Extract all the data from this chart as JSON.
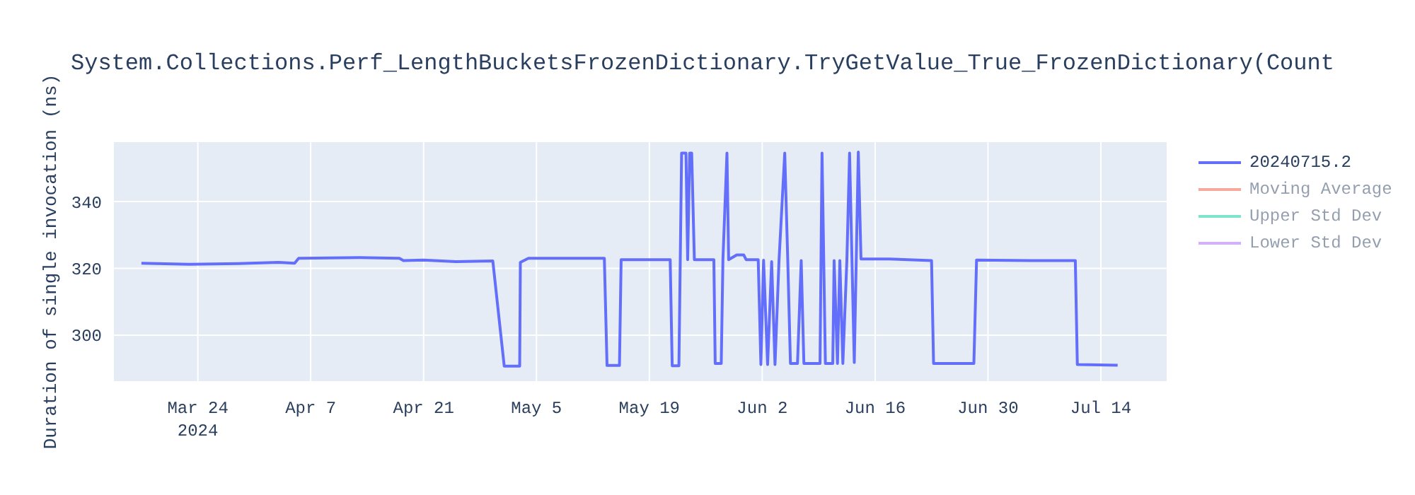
{
  "chart_data": {
    "type": "line",
    "title": "System.Collections.Perf_LengthBucketsFrozenDictionary.TryGetValue_True_FrozenDictionary(Count",
    "ylabel": "Duration of single invocation (ns)",
    "x": [
      "2024-03-17",
      "2024-03-23",
      "2024-03-29",
      "2024-04-03",
      "2024-04-05",
      "2024-04-05T12:00",
      "2024-04-13",
      "2024-04-18",
      "2024-04-18T12:00",
      "2024-04-21",
      "2024-04-25",
      "2024-04-29T14:00",
      "2024-05-01",
      "2024-05-02T22:00",
      "2024-05-03",
      "2024-05-04",
      "2024-05-13T10:00",
      "2024-05-13T18:00",
      "2024-05-15T07:00",
      "2024-05-15T12:00",
      "2024-05-21T14:00",
      "2024-05-21T20:00",
      "2024-05-22T16:00",
      "2024-05-22T20:00",
      "2024-05-23",
      "2024-05-23T13:00",
      "2024-05-23T18:00",
      "2024-05-24",
      "2024-05-24T06:00",
      "2024-05-24T14:00",
      "2024-05-27",
      "2024-05-27T04:00",
      "2024-05-27T22:00",
      "2024-05-28T03:00",
      "2024-05-28T15:00",
      "2024-05-28T20:00",
      "2024-05-29T20:00",
      "2024-05-30T17:00",
      "2024-05-31",
      "2024-06-01T12:00",
      "2024-06-01T20:00",
      "2024-06-02T04:00",
      "2024-06-02T16:00",
      "2024-06-03T04:00",
      "2024-06-03T14:00",
      "2024-06-04T02:00",
      "2024-06-04T19:00",
      "2024-06-05T04:00",
      "2024-06-05T12:00",
      "2024-06-06T09:00",
      "2024-06-06T20:00",
      "2024-06-07T04:00",
      "2024-06-09T04:00",
      "2024-06-09T10:00",
      "2024-06-09T20:00",
      "2024-06-10T18:00",
      "2024-06-10T22:00",
      "2024-06-11T08:00",
      "2024-06-11T15:00",
      "2024-06-12",
      "2024-06-12T12:00",
      "2024-06-12T20:00",
      "2024-06-13T10:00",
      "2024-06-13T22:00",
      "2024-06-14T06:00",
      "2024-06-17T18:00",
      "2024-06-23",
      "2024-06-23T06:00",
      "2024-06-28T06:00",
      "2024-06-28T14:00",
      "2024-07-05T06:00",
      "2024-07-10T20:00",
      "2024-07-11T02:00",
      "2024-07-16T02:00"
    ],
    "series": [
      {
        "name": "20240715.2",
        "color": "#636efa",
        "values": [
          321.5,
          321.2,
          321.4,
          321.8,
          321.5,
          323.0,
          323.2,
          323.0,
          322.3,
          322.5,
          322.0,
          322.2,
          290.7,
          290.7,
          321.8,
          323.0,
          323.0,
          290.9,
          290.9,
          322.6,
          322.6,
          290.8,
          290.8,
          322.6,
          354.5,
          354.5,
          322.6,
          354.5,
          354.5,
          322.6,
          322.6,
          291.5,
          291.5,
          322.6,
          354.5,
          322.6,
          324.0,
          324.0,
          322.6,
          322.6,
          291.2,
          322.4,
          291.2,
          322.0,
          291.2,
          322.4,
          354.5,
          322.4,
          291.5,
          291.5,
          322.3,
          291.5,
          291.5,
          354.5,
          291.5,
          291.5,
          322.3,
          291.5,
          322.3,
          291.5,
          322.6,
          354.5,
          291.8,
          354.8,
          322.8,
          322.8,
          322.3,
          291.5,
          291.5,
          322.5,
          322.3,
          322.3,
          291.2,
          291.0
        ]
      },
      {
        "name": "Moving Average",
        "color": "#ef553b",
        "values": [
          null,
          null,
          null,
          null,
          null,
          null,
          null,
          null,
          null,
          null,
          null,
          null,
          null,
          null,
          null,
          null,
          null,
          null,
          null,
          null,
          null,
          null,
          null,
          null,
          null,
          null,
          null,
          null,
          null,
          null,
          null,
          null,
          null,
          null,
          null,
          null,
          null,
          null,
          null,
          null,
          null,
          null,
          null,
          null,
          null,
          null,
          null,
          null,
          null,
          null,
          null,
          null,
          null,
          null,
          null,
          null,
          null,
          null,
          null,
          null,
          null,
          null,
          null,
          null,
          null,
          null,
          null,
          null,
          null,
          null,
          null,
          null,
          null,
          null
        ]
      },
      {
        "name": "Upper Std Dev",
        "color": "#00cc96",
        "values": [
          null,
          null,
          null,
          null,
          null,
          null,
          null,
          null,
          null,
          null,
          null,
          null,
          null,
          null,
          null,
          null,
          null,
          null,
          null,
          null,
          null,
          null,
          null,
          null,
          null,
          null,
          null,
          null,
          null,
          null,
          null,
          null,
          null,
          null,
          null,
          null,
          null,
          null,
          null,
          null,
          null,
          null,
          null,
          null,
          null,
          null,
          null,
          null,
          null,
          null,
          null,
          null,
          null,
          null,
          null,
          null,
          null,
          null,
          null,
          null,
          null,
          null,
          null,
          null,
          null,
          null,
          null,
          null,
          null,
          null,
          null,
          null,
          null,
          null
        ]
      },
      {
        "name": "Lower Std Dev",
        "color": "#ab63fa",
        "values": [
          null,
          null,
          null,
          null,
          null,
          null,
          null,
          null,
          null,
          null,
          null,
          null,
          null,
          null,
          null,
          null,
          null,
          null,
          null,
          null,
          null,
          null,
          null,
          null,
          null,
          null,
          null,
          null,
          null,
          null,
          null,
          null,
          null,
          null,
          null,
          null,
          null,
          null,
          null,
          null,
          null,
          null,
          null,
          null,
          null,
          null,
          null,
          null,
          null,
          null,
          null,
          null,
          null,
          null,
          null,
          null,
          null,
          null,
          null,
          null,
          null,
          null,
          null,
          null,
          null,
          null,
          null,
          null,
          null,
          null,
          null,
          null,
          null,
          null
        ]
      }
    ],
    "xlim": [
      "2024-03-13T12:00",
      "2024-07-22T06:00"
    ],
    "xticks": [
      {
        "value": "2024-03-24",
        "label": "Mar 24\n2024"
      },
      {
        "value": "2024-04-07",
        "label": "Apr 7"
      },
      {
        "value": "2024-04-21",
        "label": "Apr 21"
      },
      {
        "value": "2024-05-05",
        "label": "May 5"
      },
      {
        "value": "2024-05-19",
        "label": "May 19"
      },
      {
        "value": "2024-06-02",
        "label": "Jun 2"
      },
      {
        "value": "2024-06-16",
        "label": "Jun 16"
      },
      {
        "value": "2024-06-30",
        "label": "Jun 30"
      },
      {
        "value": "2024-07-14",
        "label": "Jul 14"
      }
    ],
    "ylim": [
      286,
      358
    ],
    "yticks": [
      300,
      320,
      340
    ],
    "grid": true,
    "legend": "top right",
    "marker": "none",
    "line_style": "solid"
  }
}
